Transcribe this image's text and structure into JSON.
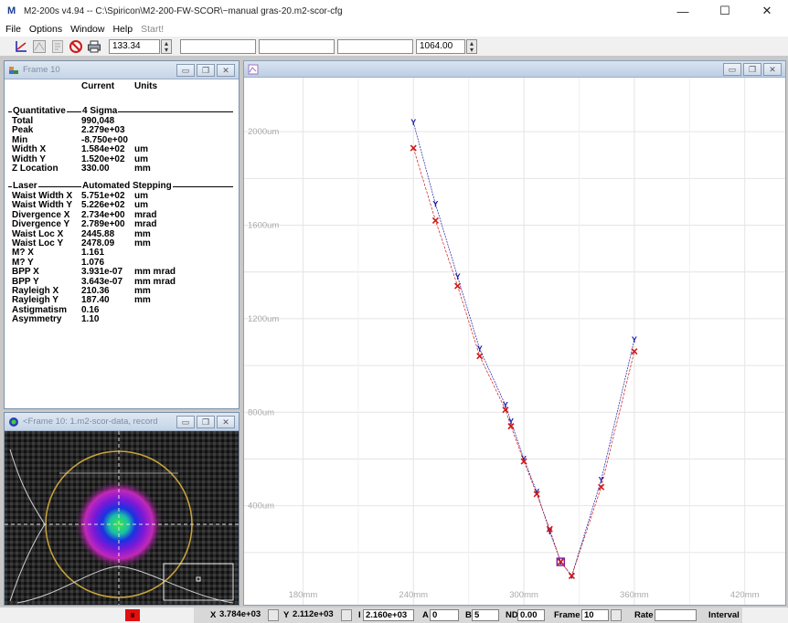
{
  "window": {
    "title": "M2-200s  v4.94 -- C:\\Spiricon\\M2-200-FW-SCOR\\~manual gras-20.m2-scor-cfg",
    "minimize": "—",
    "maximize": "☐",
    "close": "✕"
  },
  "menu": [
    "File",
    "Options",
    "Window",
    "Help",
    "Start!"
  ],
  "toolbar": {
    "field1": "133.34",
    "field2": "",
    "field3": "",
    "field4": "",
    "field5": "1064.00"
  },
  "quant_frame": {
    "title": "Frame 10",
    "col_current": "Current",
    "col_units": "Units",
    "sections": [
      {
        "left": "Quantitative",
        "right": "4 Sigma"
      },
      {
        "left": "Laser",
        "right": "Automated Stepping"
      }
    ],
    "rows1": [
      {
        "label": "Total",
        "value": "990,048",
        "unit": ""
      },
      {
        "label": "Peak",
        "value": "2.279e+03",
        "unit": ""
      },
      {
        "label": "Min",
        "value": "-8.750e+00",
        "unit": ""
      },
      {
        "label": "Width X",
        "value": "1.584e+02",
        "unit": "um"
      },
      {
        "label": "Width Y",
        "value": "1.520e+02",
        "unit": "um"
      },
      {
        "label": "Z Location",
        "value": "330.00",
        "unit": "mm"
      }
    ],
    "rows2": [
      {
        "label": "Waist Width X",
        "value": "5.751e+02",
        "unit": "um"
      },
      {
        "label": "Waist Width Y",
        "value": "5.226e+02",
        "unit": "um"
      },
      {
        "label": "Divergence X",
        "value": "2.734e+00",
        "unit": "mrad"
      },
      {
        "label": "Divergence Y",
        "value": "2.789e+00",
        "unit": "mrad"
      },
      {
        "label": "Waist Loc X",
        "value": "2445.88",
        "unit": "mm"
      },
      {
        "label": "Waist Loc Y",
        "value": "2478.09",
        "unit": "mm"
      },
      {
        "label": "M? X",
        "value": "1.161",
        "unit": ""
      },
      {
        "label": "M? Y",
        "value": "1.076",
        "unit": ""
      },
      {
        "label": "BPP X",
        "value": "3.931e-07",
        "unit": "mm mrad"
      },
      {
        "label": "BPP Y",
        "value": "3.643e-07",
        "unit": "mm mrad"
      },
      {
        "label": "Rayleigh X",
        "value": "210.36",
        "unit": "mm"
      },
      {
        "label": "Rayleigh Y",
        "value": "187.40",
        "unit": "mm"
      },
      {
        "label": "Astigmatism",
        "value": "0.16",
        "unit": ""
      },
      {
        "label": "Asymmetry",
        "value": "1.10",
        "unit": ""
      }
    ]
  },
  "image_frame": {
    "title": "<Frame 10: 1.m2-scor-data, record ..."
  },
  "chart_data": {
    "type": "scatter",
    "title": "",
    "xlabel": "",
    "ylabel": "",
    "x_ticks": [
      "180mm",
      "240mm",
      "300mm",
      "360mm",
      "420mm"
    ],
    "x_tick_values": [
      180,
      240,
      300,
      360,
      420
    ],
    "y_ticks": [
      "400um",
      "800um",
      "1200um",
      "1600um",
      "2000um"
    ],
    "y_tick_values": [
      400,
      800,
      1200,
      1600,
      2000
    ],
    "xlim": [
      148,
      442
    ],
    "ylim": [
      0,
      2200
    ],
    "grid": true,
    "series": [
      {
        "marker": "Y",
        "color": "#1a1aa8",
        "x": [
          240,
          252,
          264,
          276,
          290,
          293,
          300,
          307,
          314,
          320,
          326,
          342,
          360
        ],
        "y": [
          2040,
          1690,
          1380,
          1070,
          830,
          760,
          600,
          460,
          290,
          160,
          100,
          510,
          1110
        ]
      },
      {
        "marker": "x",
        "color": "#d01818",
        "x": [
          240,
          252,
          264,
          276,
          290,
          293,
          300,
          307,
          314,
          320,
          326,
          342,
          360
        ],
        "y": [
          1930,
          1620,
          1340,
          1040,
          810,
          740,
          590,
          450,
          300,
          160,
          100,
          480,
          1060
        ]
      }
    ]
  },
  "status": {
    "x_label": "X",
    "x_value": "3.784e+03",
    "y_label": "Y",
    "y_value": "2.112e+03",
    "i_label": "I",
    "i_value": "2.160e+03",
    "a_label": "A",
    "a_value": "0",
    "b_label": "B",
    "b_value": "5",
    "nd_label": "ND",
    "nd_value": "0.00",
    "frame_label": "Frame",
    "frame_value": "10",
    "rate_label": "Rate",
    "interval_label": "Interval"
  }
}
